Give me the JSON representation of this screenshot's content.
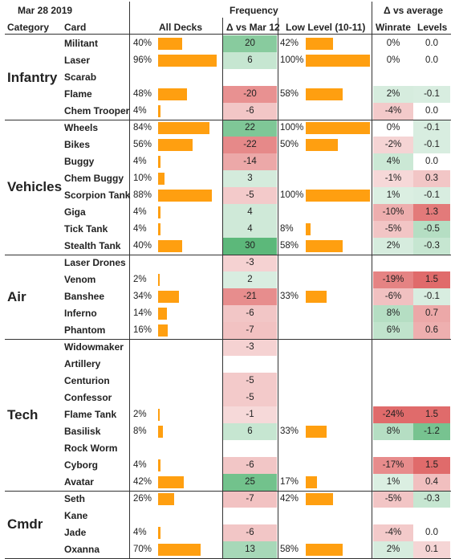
{
  "chart_data": {
    "type": "table",
    "title": "Mar 28 2019",
    "group_headers": {
      "frequency": "Frequency",
      "delta_avg": "Δ vs average"
    },
    "columns": {
      "category": "Category",
      "card": "Card",
      "all_decks": "All Decks",
      "delta_mar12": "Δ vs Mar 12",
      "low_level": "Low Level (10-11)",
      "winrate": "Winrate",
      "levels": "Levels"
    },
    "colors": {
      "bar": "#ff9f10",
      "positive": "#5cb87a",
      "negative": "#e06b6b"
    },
    "categories": [
      {
        "name": "Infantry",
        "rows": [
          {
            "card": "Militant",
            "all": 40,
            "delta": 20,
            "low": 42,
            "winrate": "0%",
            "wr": 0,
            "levels": "0.0",
            "lv": 0
          },
          {
            "card": "Laser",
            "all": 96,
            "delta": 6,
            "low": 100,
            "winrate": "0%",
            "wr": 0,
            "levels": "0.0",
            "lv": 0
          },
          {
            "card": "Scarab"
          },
          {
            "card": "Flame",
            "all": 48,
            "delta": -20,
            "low": 58,
            "winrate": "2%",
            "wr": 2,
            "levels": "-0.1",
            "lv": -0.1
          },
          {
            "card": "Chem Trooper",
            "all": 4,
            "delta": -6,
            "winrate": "-4%",
            "wr": -4,
            "levels": "0.0",
            "lv": 0
          }
        ]
      },
      {
        "name": "Vehicles",
        "rows": [
          {
            "card": "Wheels",
            "all": 84,
            "delta": 22,
            "low": 100,
            "winrate": "0%",
            "wr": 0,
            "levels": "-0.1",
            "lv": -0.1
          },
          {
            "card": "Bikes",
            "all": 56,
            "delta": -22,
            "low": 50,
            "winrate": "-2%",
            "wr": -2,
            "levels": "-0.1",
            "lv": -0.1
          },
          {
            "card": "Buggy",
            "all": 4,
            "delta": -14,
            "winrate": "4%",
            "wr": 4,
            "levels": "0.0",
            "lv": 0
          },
          {
            "card": "Chem Buggy",
            "all": 10,
            "delta": 3,
            "winrate": "-1%",
            "wr": -1,
            "levels": "0.3",
            "lv": 0.3
          },
          {
            "card": "Scorpion Tank",
            "all": 88,
            "delta": -5,
            "low": 100,
            "winrate": "1%",
            "wr": 1,
            "levels": "-0.1",
            "lv": -0.1
          },
          {
            "card": "Giga",
            "all": 4,
            "delta": 4,
            "winrate": "-10%",
            "wr": -10,
            "levels": "1.3",
            "lv": 1.3
          },
          {
            "card": "Tick Tank",
            "all": 4,
            "delta": 4,
            "low": 8,
            "winrate": "-5%",
            "wr": -5,
            "levels": "-0.5",
            "lv": -0.5
          },
          {
            "card": "Stealth Tank",
            "all": 40,
            "delta": 30,
            "low": 58,
            "winrate": "2%",
            "wr": 2,
            "levels": "-0.3",
            "lv": -0.3
          }
        ]
      },
      {
        "name": "Air",
        "rows": [
          {
            "card": "Laser Drones",
            "delta": -3
          },
          {
            "card": "Venom",
            "all": 2,
            "delta": 2,
            "winrate": "-19%",
            "wr": -19,
            "levels": "1.5",
            "lv": 1.5
          },
          {
            "card": "Banshee",
            "all": 34,
            "delta": -21,
            "low": 33,
            "winrate": "-6%",
            "wr": -6,
            "levels": "-0.1",
            "lv": -0.1
          },
          {
            "card": "Inferno",
            "all": 14,
            "delta": -6,
            "winrate": "8%",
            "wr": 8,
            "levels": "0.7",
            "lv": 0.7
          },
          {
            "card": "Phantom",
            "all": 16,
            "delta": -7,
            "winrate": "6%",
            "wr": 6,
            "levels": "0.6",
            "lv": 0.6
          }
        ]
      },
      {
        "name": "Tech",
        "rows": [
          {
            "card": "Widowmaker",
            "delta": -3
          },
          {
            "card": "Artillery"
          },
          {
            "card": "Centurion",
            "delta": -5
          },
          {
            "card": "Confessor",
            "delta": -5
          },
          {
            "card": "Flame Tank",
            "all": 2,
            "delta": -1,
            "winrate": "-24%",
            "wr": -24,
            "levels": "1.5",
            "lv": 1.5
          },
          {
            "card": "Basilisk",
            "all": 8,
            "delta": 6,
            "low": 33,
            "winrate": "8%",
            "wr": 8,
            "levels": "-1.2",
            "lv": -1.2
          },
          {
            "card": "Rock Worm"
          },
          {
            "card": "Cyborg",
            "all": 4,
            "delta": -6,
            "winrate": "-17%",
            "wr": -17,
            "levels": "1.5",
            "lv": 1.5
          },
          {
            "card": "Avatar",
            "all": 42,
            "delta": 25,
            "low": 17,
            "winrate": "1%",
            "wr": 1,
            "levels": "0.4",
            "lv": 0.4
          }
        ]
      },
      {
        "name": "Cmdr",
        "rows": [
          {
            "card": "Seth",
            "all": 26,
            "delta": -7,
            "low": 42,
            "winrate": "-5%",
            "wr": -5,
            "levels": "-0.3",
            "lv": -0.3
          },
          {
            "card": "Kane"
          },
          {
            "card": "Jade",
            "all": 4,
            "delta": -6,
            "winrate": "-4%",
            "wr": -4,
            "levels": "0.0",
            "lv": 0
          },
          {
            "card": "Oxanna",
            "all": 70,
            "delta": 13,
            "low": 58,
            "winrate": "2%",
            "wr": 2,
            "levels": "0.1",
            "lv": 0.1
          }
        ]
      }
    ]
  }
}
